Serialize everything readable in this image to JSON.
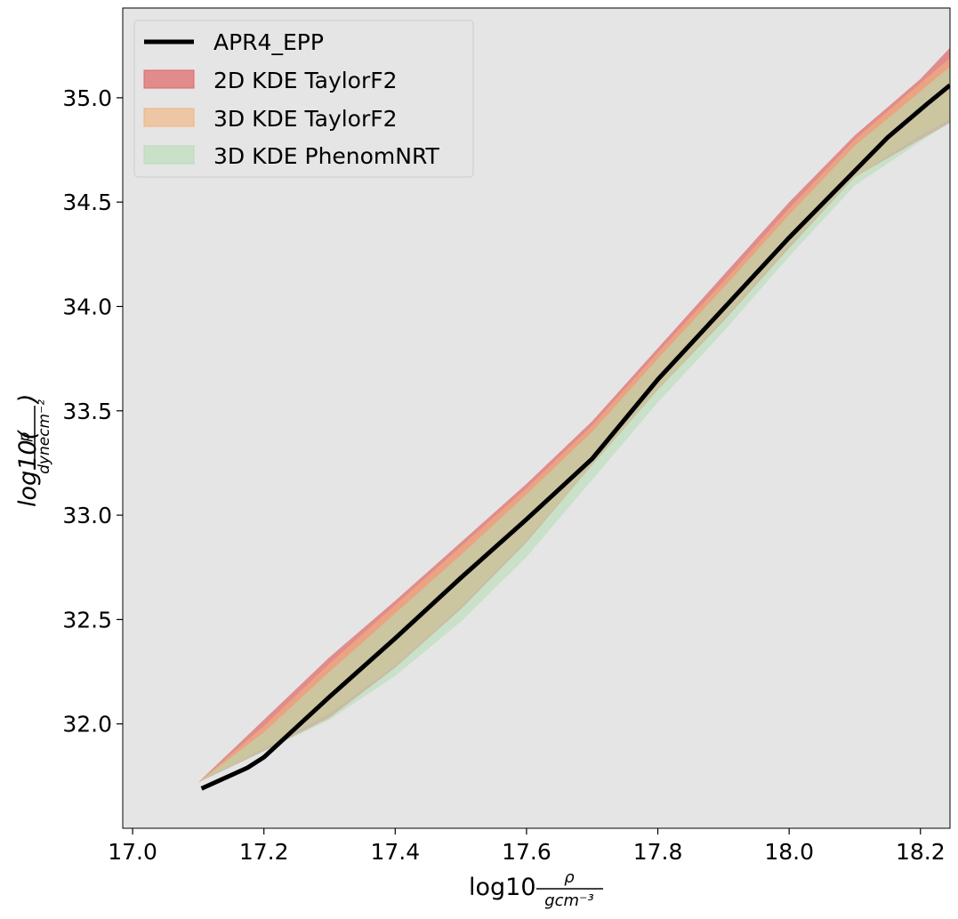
{
  "chart_data": {
    "type": "area",
    "background": "#e5e5e5",
    "grid": false,
    "legend_position": "top-left",
    "xlim": [
      16.985,
      18.245
    ],
    "ylim": [
      31.5,
      35.43
    ],
    "xticks": [
      17.0,
      17.2,
      17.4,
      17.6,
      17.8,
      18.0,
      18.2
    ],
    "yticks": [
      32.0,
      32.5,
      33.0,
      33.5,
      34.0,
      34.5,
      35.0
    ],
    "xtick_labels": [
      "17.0",
      "17.2",
      "17.4",
      "17.6",
      "17.8",
      "18.0",
      "18.2"
    ],
    "ytick_labels": [
      "32.0",
      "32.5",
      "33.0",
      "33.5",
      "34.0",
      "34.5",
      "35.0"
    ],
    "xlabel": {
      "main": "log10",
      "num": "ρ",
      "den": "gcm⁻³"
    },
    "ylabel": {
      "main": "log10(",
      "num": "p",
      "den": "dynecm⁻²",
      "close": ")"
    },
    "line": {
      "name": "APR4_EPP",
      "color": "#000000",
      "x": [
        17.105,
        17.175,
        17.2,
        17.3,
        17.4,
        17.5,
        17.6,
        17.7,
        17.8,
        17.9,
        18.0,
        18.15,
        18.21,
        18.245
      ],
      "y": [
        31.69,
        31.79,
        31.84,
        32.13,
        32.41,
        32.7,
        32.98,
        33.27,
        33.65,
        33.99,
        34.33,
        34.81,
        34.97,
        35.06
      ]
    },
    "bands": [
      {
        "name": "2D KDE TaylorF2",
        "color": "#e06666",
        "opacity": 0.7,
        "x": [
          17.1,
          17.2,
          17.3,
          17.4,
          17.5,
          17.6,
          17.7,
          17.8,
          17.9,
          18.0,
          18.1,
          18.2,
          18.245
        ],
        "upper": [
          31.72,
          32.02,
          32.32,
          32.59,
          32.87,
          33.15,
          33.45,
          33.8,
          34.15,
          34.5,
          34.82,
          35.09,
          35.24
        ],
        "lower": [
          31.72,
          31.87,
          32.03,
          32.27,
          32.55,
          32.87,
          33.24,
          33.6,
          33.93,
          34.28,
          34.62,
          34.8,
          34.88
        ]
      },
      {
        "name": "3D KDE TaylorF2",
        "color": "#f2b27a",
        "opacity": 0.6,
        "x": [
          17.1,
          17.2,
          17.3,
          17.4,
          17.5,
          17.6,
          17.7,
          17.8,
          17.9,
          18.0,
          18.1,
          18.2,
          18.245
        ],
        "upper": [
          31.72,
          31.99,
          32.29,
          32.57,
          32.85,
          33.13,
          33.43,
          33.78,
          34.12,
          34.47,
          34.8,
          35.07,
          35.19
        ],
        "lower": [
          31.72,
          31.88,
          32.05,
          32.28,
          32.56,
          32.88,
          33.24,
          33.6,
          33.94,
          34.29,
          34.62,
          34.82,
          34.9
        ]
      },
      {
        "name": "3D KDE PhenomNRT",
        "color": "#b6dcb6",
        "opacity": 0.6,
        "x": [
          17.1,
          17.2,
          17.3,
          17.4,
          17.5,
          17.6,
          17.7,
          17.8,
          17.9,
          18.0,
          18.1,
          18.2,
          18.245
        ],
        "upper": [
          31.72,
          31.96,
          32.25,
          32.53,
          32.81,
          33.1,
          33.4,
          33.75,
          34.09,
          34.44,
          34.77,
          35.03,
          35.15
        ],
        "lower": [
          31.72,
          31.87,
          32.02,
          32.23,
          32.49,
          32.8,
          33.17,
          33.54,
          33.88,
          34.24,
          34.58,
          34.79,
          34.88
        ]
      }
    ]
  }
}
